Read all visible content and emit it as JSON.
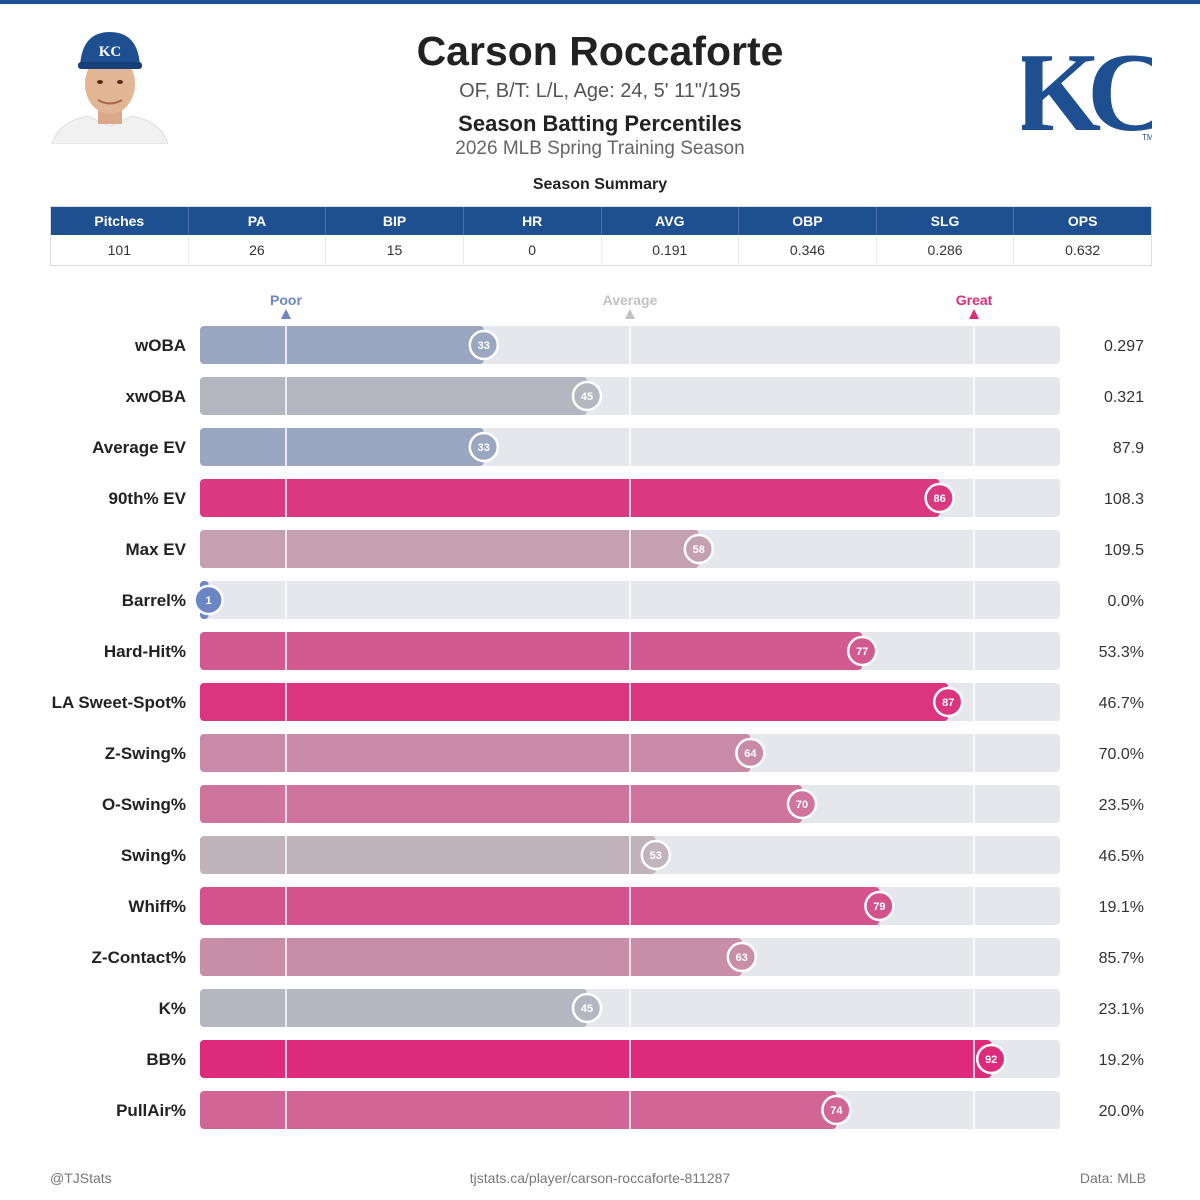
{
  "header": {
    "name": "Carson Roccaforte",
    "bio": "OF, B/T: L/L, Age: 24, 5' 11\"/195",
    "subtitle": "Season Batting Percentiles",
    "season": "2026 MLB Spring Training Season",
    "logo_text": "KC",
    "logo_tm": "TM"
  },
  "summary": {
    "title": "Season Summary",
    "columns": [
      "Pitches",
      "PA",
      "BIP",
      "HR",
      "AVG",
      "OBP",
      "SLG",
      "OPS"
    ],
    "values": [
      "101",
      "26",
      "15",
      "0",
      "0.191",
      "0.346",
      "0.286",
      "0.632"
    ]
  },
  "chart_data": {
    "type": "bar",
    "orientation": "horizontal",
    "xlim": [
      0,
      100
    ],
    "reference_markers": [
      {
        "label": "Poor",
        "value": 10,
        "color": "#6b86c4"
      },
      {
        "label": "Average",
        "value": 50,
        "color": "#c2c2c2"
      },
      {
        "label": "Great",
        "value": 90,
        "color": "#dd2a7b"
      }
    ],
    "categories": [
      "wOBA",
      "xwOBA",
      "Average EV",
      "90th% EV",
      "Max EV",
      "Barrel%",
      "Hard-Hit%",
      "LA Sweet-Spot%",
      "Z-Swing%",
      "O-Swing%",
      "Swing%",
      "Whiff%",
      "Z-Contact%",
      "K%",
      "BB%",
      "PullAir%"
    ],
    "percentiles": [
      33,
      45,
      33,
      86,
      58,
      1,
      77,
      87,
      64,
      70,
      53,
      79,
      63,
      45,
      92,
      74
    ],
    "stat_values": [
      "0.297",
      "0.321",
      "87.9",
      "108.3",
      "109.5",
      "0.0%",
      "53.3%",
      "46.7%",
      "70.0%",
      "23.5%",
      "46.5%",
      "19.1%",
      "85.7%",
      "23.1%",
      "19.2%",
      "20.0%"
    ],
    "colors": {
      "poor": "#6b86c4",
      "average": "#bebebe",
      "great": "#dd2a7b",
      "track": "#e6e7ed"
    }
  },
  "footer": {
    "left": "@TJStats",
    "center": "tjstats.ca/player/carson-roccaforte-811287",
    "right": "Data: MLB"
  }
}
